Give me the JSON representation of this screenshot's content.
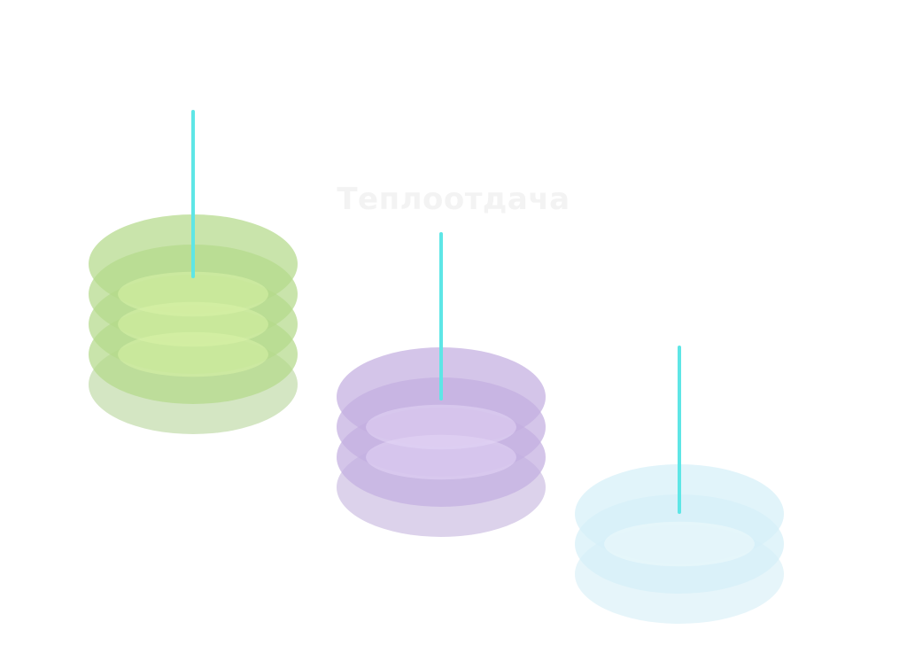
{
  "title": "Теплоотдача",
  "stacks": [
    {
      "name": "green-stack",
      "layers": 5,
      "color": "#b4d98a",
      "core_color": "#d9f2a8",
      "shadow_color": "#cfe3bd",
      "needle_color": "#5ee6e6"
    },
    {
      "name": "purple-stack",
      "layers": 4,
      "color": "#c3aee0",
      "core_color": "#e4d6f5",
      "shadow_color": "#d8cde9",
      "needle_color": "#5ee6e6"
    },
    {
      "name": "blue-stack",
      "layers": 3,
      "color": "#d6f0f8",
      "core_color": "#eef9fc",
      "shadow_color": "#e3f4fa",
      "needle_color": "#5ee6e6"
    }
  ]
}
